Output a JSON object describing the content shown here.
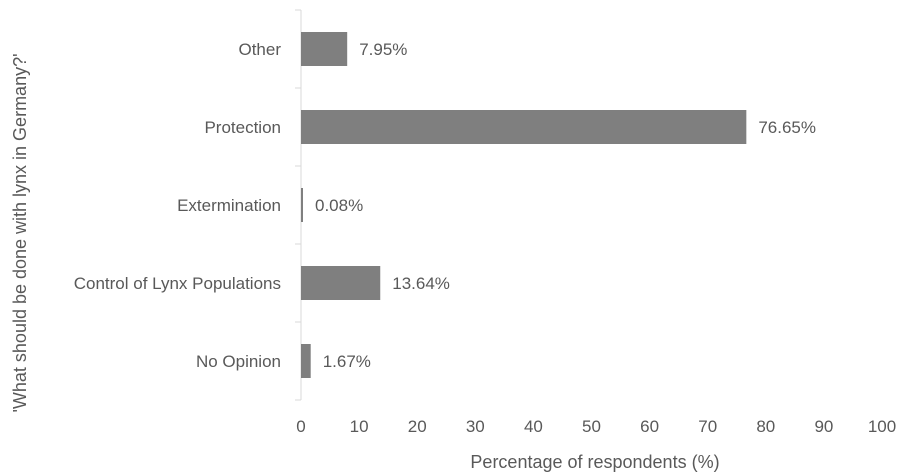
{
  "chart_data": {
    "type": "bar",
    "orientation": "horizontal",
    "categories": [
      "Other",
      "Protection",
      "Extermination",
      "Control of Lynx Populations",
      "No Opinion"
    ],
    "values": [
      7.95,
      76.65,
      0.08,
      13.64,
      1.67
    ],
    "value_labels": [
      "7.95%",
      "76.65%",
      "0.08%",
      "13.64%",
      "1.67%"
    ],
    "xlabel": "Percentage of respondents (%)",
    "ylabel": "'What should be done with lynx in Germany?'",
    "xlim": [
      0,
      100
    ],
    "xticks": [
      0,
      10,
      20,
      30,
      40,
      50,
      60,
      70,
      80,
      90,
      100
    ],
    "grid": false,
    "bar_color": "#7f7f7f",
    "axis_color": "#d9d9d9",
    "text_color": "#595959"
  }
}
